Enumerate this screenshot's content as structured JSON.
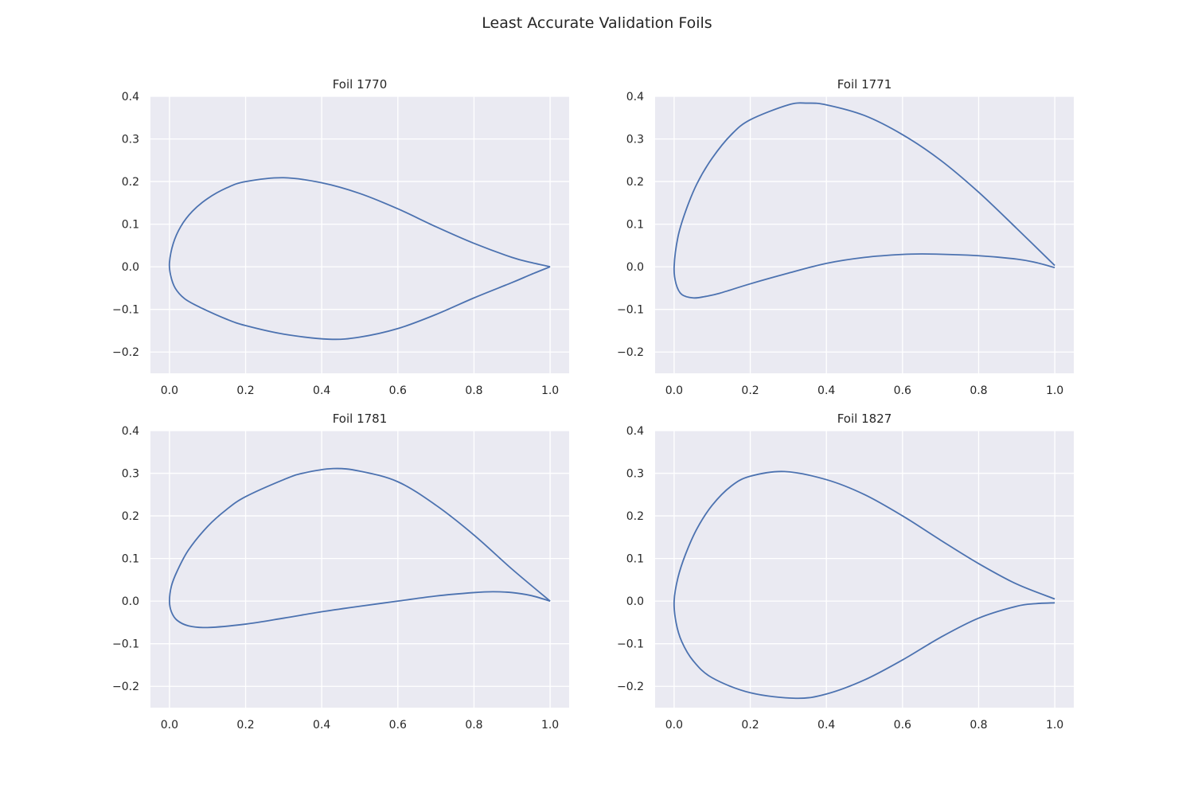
{
  "figure": {
    "title": "Least Accurate Validation Foils"
  },
  "chart_data": [
    {
      "type": "line",
      "title": "Foil 1770",
      "xlabel": "",
      "ylabel": "",
      "xlim": [
        -0.05,
        1.05
      ],
      "ylim": [
        -0.25,
        0.4
      ],
      "xticks": [
        0.0,
        0.2,
        0.4,
        0.6,
        0.8,
        1.0
      ],
      "xtick_labels": [
        "0.0",
        "0.2",
        "0.4",
        "0.6",
        "0.8",
        "1.0"
      ],
      "yticks": [
        -0.2,
        -0.1,
        0.0,
        0.1,
        0.2,
        0.3,
        0.4
      ],
      "ytick_labels": [
        "−0.2",
        "−0.1",
        "0.0",
        "0.1",
        "0.2",
        "0.3",
        "0.4"
      ],
      "grid": true,
      "color": "#4c72b0",
      "x": [
        1.0,
        0.95,
        0.9,
        0.8,
        0.7,
        0.6,
        0.5,
        0.4,
        0.3,
        0.2,
        0.15,
        0.1,
        0.06,
        0.03,
        0.01,
        0.0,
        0.003,
        0.015,
        0.04,
        0.08,
        0.15,
        0.2,
        0.3,
        0.42,
        0.5,
        0.6,
        0.7,
        0.8,
        0.9,
        0.95,
        1.0
      ],
      "y": [
        0.0,
        0.01,
        0.022,
        0.055,
        0.094,
        0.136,
        0.172,
        0.197,
        0.209,
        0.2,
        0.185,
        0.16,
        0.13,
        0.095,
        0.055,
        0.01,
        -0.02,
        -0.05,
        -0.075,
        -0.095,
        -0.123,
        -0.138,
        -0.158,
        -0.17,
        -0.165,
        -0.145,
        -0.112,
        -0.073,
        -0.037,
        -0.018,
        0.0
      ]
    },
    {
      "type": "line",
      "title": "Foil 1771",
      "xlabel": "",
      "ylabel": "",
      "xlim": [
        -0.05,
        1.05
      ],
      "ylim": [
        -0.25,
        0.4
      ],
      "xticks": [
        0.0,
        0.2,
        0.4,
        0.6,
        0.8,
        1.0
      ],
      "xtick_labels": [
        "0.0",
        "0.2",
        "0.4",
        "0.6",
        "0.8",
        "1.0"
      ],
      "yticks": [
        -0.2,
        -0.1,
        0.0,
        0.1,
        0.2,
        0.3,
        0.4
      ],
      "ytick_labels": [
        "−0.2",
        "−0.1",
        "0.0",
        "0.1",
        "0.2",
        "0.3",
        "0.4"
      ],
      "grid": true,
      "color": "#4c72b0",
      "x": [
        1.0,
        0.9,
        0.8,
        0.7,
        0.6,
        0.5,
        0.4,
        0.35,
        0.3,
        0.2,
        0.15,
        0.1,
        0.06,
        0.03,
        0.01,
        0.0,
        0.005,
        0.02,
        0.05,
        0.08,
        0.12,
        0.2,
        0.3,
        0.4,
        0.5,
        0.6,
        0.67,
        0.8,
        0.9,
        0.95,
        1.0
      ],
      "y": [
        0.003,
        0.09,
        0.175,
        0.25,
        0.31,
        0.355,
        0.38,
        0.384,
        0.38,
        0.345,
        0.31,
        0.255,
        0.195,
        0.13,
        0.07,
        0.0,
        -0.04,
        -0.065,
        -0.073,
        -0.07,
        -0.062,
        -0.04,
        -0.015,
        0.008,
        0.022,
        0.029,
        0.03,
        0.026,
        0.018,
        0.01,
        -0.002
      ]
    },
    {
      "type": "line",
      "title": "Foil 1781",
      "xlabel": "",
      "ylabel": "",
      "xlim": [
        -0.05,
        1.05
      ],
      "ylim": [
        -0.25,
        0.4
      ],
      "xticks": [
        0.0,
        0.2,
        0.4,
        0.6,
        0.8,
        1.0
      ],
      "xtick_labels": [
        "0.0",
        "0.2",
        "0.4",
        "0.6",
        "0.8",
        "1.0"
      ],
      "yticks": [
        -0.2,
        -0.1,
        0.0,
        0.1,
        0.2,
        0.3,
        0.4
      ],
      "ytick_labels": [
        "−0.2",
        "−0.1",
        "0.0",
        "0.1",
        "0.2",
        "0.3",
        "0.4"
      ],
      "grid": true,
      "color": "#4c72b0",
      "x": [
        1.0,
        0.9,
        0.8,
        0.7,
        0.6,
        0.5,
        0.43,
        0.35,
        0.3,
        0.2,
        0.15,
        0.1,
        0.05,
        0.02,
        0.005,
        0.0,
        0.005,
        0.02,
        0.05,
        0.1,
        0.2,
        0.3,
        0.4,
        0.5,
        0.6,
        0.7,
        0.8,
        0.85,
        0.9,
        0.95,
        1.0
      ],
      "y": [
        0.0,
        0.075,
        0.155,
        0.225,
        0.28,
        0.305,
        0.311,
        0.3,
        0.285,
        0.245,
        0.215,
        0.175,
        0.12,
        0.07,
        0.035,
        0.0,
        -0.025,
        -0.045,
        -0.058,
        -0.062,
        -0.054,
        -0.04,
        -0.025,
        -0.012,
        0.0,
        0.012,
        0.02,
        0.022,
        0.02,
        0.013,
        0.0
      ]
    },
    {
      "type": "line",
      "title": "Foil 1827",
      "xlabel": "",
      "ylabel": "",
      "xlim": [
        -0.05,
        1.05
      ],
      "ylim": [
        -0.25,
        0.4
      ],
      "xticks": [
        0.0,
        0.2,
        0.4,
        0.6,
        0.8,
        1.0
      ],
      "xtick_labels": [
        "0.0",
        "0.2",
        "0.4",
        "0.6",
        "0.8",
        "1.0"
      ],
      "yticks": [
        -0.2,
        -0.1,
        0.0,
        0.1,
        0.2,
        0.3,
        0.4
      ],
      "ytick_labels": [
        "−0.2",
        "−0.1",
        "0.0",
        "0.1",
        "0.2",
        "0.3",
        "0.4"
      ],
      "grid": true,
      "color": "#4c72b0",
      "x": [
        1.0,
        0.9,
        0.8,
        0.7,
        0.6,
        0.5,
        0.4,
        0.29,
        0.2,
        0.15,
        0.1,
        0.06,
        0.03,
        0.01,
        0.0,
        0.005,
        0.02,
        0.05,
        0.1,
        0.2,
        0.32,
        0.4,
        0.5,
        0.6,
        0.7,
        0.8,
        0.9,
        0.95,
        1.0
      ],
      "y": [
        0.005,
        0.04,
        0.088,
        0.143,
        0.2,
        0.25,
        0.285,
        0.304,
        0.293,
        0.27,
        0.225,
        0.17,
        0.11,
        0.055,
        0.0,
        -0.05,
        -0.095,
        -0.14,
        -0.18,
        -0.215,
        -0.228,
        -0.218,
        -0.185,
        -0.138,
        -0.085,
        -0.04,
        -0.012,
        -0.006,
        -0.004
      ]
    }
  ]
}
